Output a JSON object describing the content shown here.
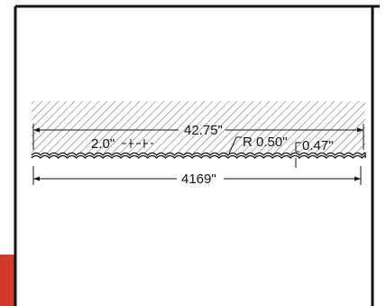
{
  "drawing": {
    "overall_width": "42.75\"",
    "pitch": "2.0\"",
    "radius": "R 0.50\"",
    "depth": "0.47\"",
    "coverage": "4169\""
  },
  "colors": {
    "line": "#111111",
    "hatch": "#9a9a9a",
    "frame": "#111111",
    "accent": "#d8382a"
  }
}
